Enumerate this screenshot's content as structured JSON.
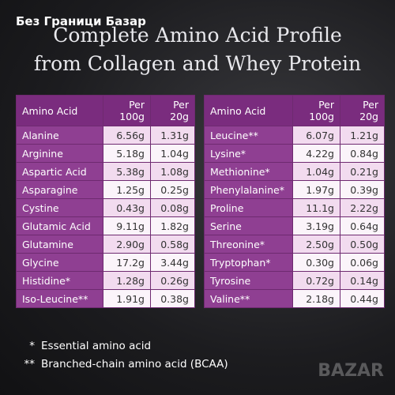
{
  "watermark": "Без Граници Базар",
  "title": [
    "Complete Amino Acid Profile",
    "from Collagen and Whey Protein"
  ],
  "tables": [
    {
      "headers": [
        "Amino Acid",
        "Per 100g",
        "Per 20g"
      ],
      "rows": [
        [
          "Alanine",
          "6.56g",
          "1.31g"
        ],
        [
          "Arginine",
          "5.18g",
          "1.04g"
        ],
        [
          "Aspartic Acid",
          "5.38g",
          "1.08g"
        ],
        [
          "Asparagine",
          "1.25g",
          "0.25g"
        ],
        [
          "Cystine",
          "0.43g",
          "0.08g"
        ],
        [
          "Glutamic Acid",
          "9.11g",
          "1.82g"
        ],
        [
          "Glutamine",
          "2.90g",
          "0.58g"
        ],
        [
          "Glycine",
          "17.2g",
          "3.44g"
        ],
        [
          "Histidine*",
          "1.28g",
          "0.26g"
        ],
        [
          "Iso-Leucine**",
          "1.91g",
          "0.38g"
        ]
      ]
    },
    {
      "headers": [
        "Amino Acid",
        "Per 100g",
        "Per 20g"
      ],
      "rows": [
        [
          "Leucine**",
          "6.07g",
          "1.21g"
        ],
        [
          "Lysine*",
          "4.22g",
          "0.84g"
        ],
        [
          "Methionine*",
          "1.04g",
          "0.21g"
        ],
        [
          "Phenylalanine*",
          "1.97g",
          "0.39g"
        ],
        [
          "Proline",
          "11.1g",
          "2.22g"
        ],
        [
          "Serine",
          "3.19g",
          "0.64g"
        ],
        [
          "Threonine*",
          "2.50g",
          "0.50g"
        ],
        [
          "Tryptophan*",
          "0.30g",
          "0.06g"
        ],
        [
          "Tyrosine",
          "0.72g",
          "0.14g"
        ],
        [
          "Valine**",
          "2.18g",
          "0.44g"
        ]
      ]
    }
  ],
  "footnotes": [
    [
      "*",
      "Essential amino acid"
    ],
    [
      "**",
      "Branched-chain amino acid (BCAA)"
    ]
  ],
  "logo": "BAZAR"
}
